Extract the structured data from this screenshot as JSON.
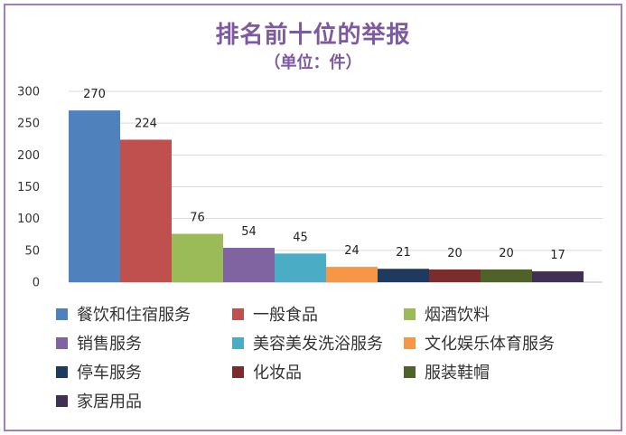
{
  "chart_data": {
    "type": "bar",
    "title": "排名前十位的举报",
    "subtitle": "（单位：件）",
    "categories": [
      "餐饮和住宿服务",
      "一般食品",
      "烟酒饮料",
      "销售服务",
      "美容美发洗浴服务",
      "文化娱乐体育服务",
      "停车服务",
      "化妆品",
      "服装鞋帽",
      "家居用品"
    ],
    "values": [
      270,
      224,
      76,
      54,
      45,
      24,
      21,
      20,
      20,
      17
    ],
    "colors": [
      "#4f81bd",
      "#c0504d",
      "#9bbb59",
      "#8064a2",
      "#4bacc6",
      "#f79646",
      "#1f3a5f",
      "#7b2c2c",
      "#4f6228",
      "#403152"
    ],
    "ylim": [
      0,
      300
    ],
    "yticks": [
      0,
      50,
      100,
      150,
      200,
      250,
      300
    ],
    "grid": true,
    "legend_position": "bottom"
  }
}
